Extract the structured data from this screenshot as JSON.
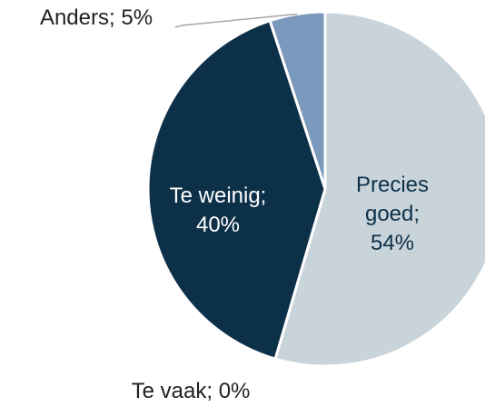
{
  "chart_data": {
    "type": "pie",
    "categories": [
      "Precies goed;",
      "Te vaak;",
      "Te weinig;",
      "Anders;"
    ],
    "values": [
      54,
      0,
      40,
      5
    ],
    "value_labels": [
      "54%",
      "0%",
      "40%",
      "5%"
    ],
    "colors": [
      "#c8d3da",
      "#ffffff",
      "#0d3049",
      "#7b98bd"
    ]
  }
}
